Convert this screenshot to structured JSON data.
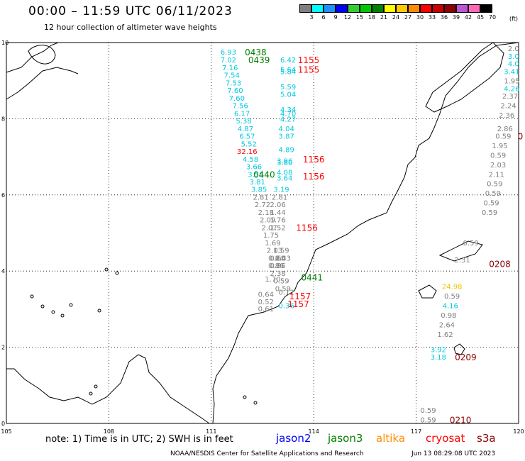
{
  "header": {
    "title": "00:00 – 11:59 UTC 06/11/2023",
    "subtitle": "12 hour collection of altimeter wave heights"
  },
  "legend": {
    "unit": "(ft)",
    "colors": [
      "#7f7f7f",
      "#00ffff",
      "#1e90ff",
      "#0000ff",
      "#32cd32",
      "#00c800",
      "#007f00",
      "#ffff00",
      "#ffc800",
      "#ff8c00",
      "#ff0000",
      "#c80000",
      "#8b0000",
      "#ba55d3",
      "#ff69b4",
      "#000000"
    ],
    "labels": [
      "3",
      "6",
      "9",
      "12",
      "15",
      "18",
      "21",
      "24",
      "27",
      "30",
      "33",
      "36",
      "39",
      "42",
      "45",
      "70"
    ]
  },
  "axes": {
    "x_ticks": [
      "105",
      "108",
      "111",
      "114",
      "117",
      "120"
    ],
    "y_ticks": [
      "0",
      "2",
      "4",
      "6",
      "8",
      "10"
    ]
  },
  "colors": {
    "jason2": "#0000ff",
    "jason3": "#007f00",
    "altika": "#ff8c00",
    "cryosat": "#ff0000",
    "s3a": "#8b0000",
    "cyan": "#00c8e0",
    "gray": "#7f7f7f",
    "yellow": "#e6c800"
  },
  "chart_data": {
    "type": "scatter",
    "title": "00:00 – 11:59 UTC 06/11/2023",
    "xlabel": "",
    "ylabel": "",
    "xlim": [
      105,
      120
    ],
    "ylim": [
      0,
      10
    ],
    "wave_labels": [
      {
        "x": 111.5,
        "y": 9.76,
        "t": "6.93",
        "c": "cyan"
      },
      {
        "x": 111.5,
        "y": 9.55,
        "t": "7.02",
        "c": "cyan"
      },
      {
        "x": 111.55,
        "y": 9.35,
        "t": "7.16",
        "c": "cyan"
      },
      {
        "x": 111.6,
        "y": 9.15,
        "t": "7.54",
        "c": "cyan"
      },
      {
        "x": 111.65,
        "y": 8.95,
        "t": "7.53",
        "c": "cyan"
      },
      {
        "x": 111.7,
        "y": 8.75,
        "t": "7.60",
        "c": "cyan"
      },
      {
        "x": 111.75,
        "y": 8.55,
        "t": "7.60",
        "c": "cyan"
      },
      {
        "x": 111.85,
        "y": 8.35,
        "t": "7.56",
        "c": "cyan"
      },
      {
        "x": 111.9,
        "y": 8.15,
        "t": "6.17",
        "c": "cyan"
      },
      {
        "x": 111.95,
        "y": 7.95,
        "t": "5.38",
        "c": "cyan"
      },
      {
        "x": 112.0,
        "y": 7.75,
        "t": "4.87",
        "c": "cyan"
      },
      {
        "x": 112.05,
        "y": 7.55,
        "t": "6.57",
        "c": "cyan"
      },
      {
        "x": 112.1,
        "y": 7.35,
        "t": "5.52",
        "c": "cyan"
      },
      {
        "x": 112.05,
        "y": 7.15,
        "t": "32.16",
        "c": "cryosat"
      },
      {
        "x": 112.15,
        "y": 6.95,
        "t": "4.58",
        "c": "cyan"
      },
      {
        "x": 112.25,
        "y": 6.75,
        "t": "3.66",
        "c": "cyan"
      },
      {
        "x": 112.3,
        "y": 6.55,
        "t": "3.55",
        "c": "cyan"
      },
      {
        "x": 112.35,
        "y": 6.35,
        "t": "3.81",
        "c": "cyan"
      },
      {
        "x": 112.4,
        "y": 6.15,
        "t": "3.85",
        "c": "cyan"
      },
      {
        "x": 112.45,
        "y": 5.95,
        "t": "2.81",
        "c": "gray"
      },
      {
        "x": 112.5,
        "y": 5.75,
        "t": "2.72",
        "c": "gray"
      },
      {
        "x": 112.6,
        "y": 5.55,
        "t": "2.18",
        "c": "gray"
      },
      {
        "x": 112.65,
        "y": 5.35,
        "t": "2.09",
        "c": "gray"
      },
      {
        "x": 112.7,
        "y": 5.15,
        "t": "2.07",
        "c": "gray"
      },
      {
        "x": 112.75,
        "y": 4.95,
        "t": "1.75",
        "c": "gray"
      },
      {
        "x": 112.8,
        "y": 4.75,
        "t": "1.69",
        "c": "gray"
      },
      {
        "x": 112.85,
        "y": 4.55,
        "t": "2.13",
        "c": "gray"
      },
      {
        "x": 112.9,
        "y": 4.35,
        "t": "0.64",
        "c": "gray"
      },
      {
        "x": 112.9,
        "y": 4.15,
        "t": "0.86",
        "c": "gray"
      },
      {
        "x": 112.8,
        "y": 3.8,
        "t": "1.70",
        "c": "gray"
      },
      {
        "x": 112.6,
        "y": 3.4,
        "t": "0.64",
        "c": "gray"
      },
      {
        "x": 112.6,
        "y": 3.2,
        "t": "0.52",
        "c": "gray"
      },
      {
        "x": 112.6,
        "y": 3.02,
        "t": "0.61",
        "c": "gray"
      },
      {
        "x": 113.25,
        "y": 9.55,
        "t": "6.42",
        "c": "cyan"
      },
      {
        "x": 113.25,
        "y": 9.3,
        "t": "5.64",
        "c": "cyan"
      },
      {
        "x": 113.25,
        "y": 9.25,
        "t": "5.84",
        "c": "cyan"
      },
      {
        "x": 113.25,
        "y": 8.85,
        "t": "5.59",
        "c": "cyan"
      },
      {
        "x": 113.25,
        "y": 8.65,
        "t": "5.04",
        "c": "cyan"
      },
      {
        "x": 113.25,
        "y": 8.25,
        "t": "4.34",
        "c": "cyan"
      },
      {
        "x": 113.25,
        "y": 8.15,
        "t": "4.70",
        "c": "cyan"
      },
      {
        "x": 113.25,
        "y": 8.0,
        "t": "4.27",
        "c": "cyan"
      },
      {
        "x": 113.2,
        "y": 7.75,
        "t": "4.04",
        "c": "cyan"
      },
      {
        "x": 113.2,
        "y": 7.55,
        "t": "3.87",
        "c": "cyan"
      },
      {
        "x": 113.2,
        "y": 7.2,
        "t": "4.89",
        "c": "cyan"
      },
      {
        "x": 113.15,
        "y": 6.9,
        "t": "3.96",
        "c": "cyan"
      },
      {
        "x": 113.15,
        "y": 6.85,
        "t": "3.80",
        "c": "cyan"
      },
      {
        "x": 113.15,
        "y": 6.6,
        "t": "4.08",
        "c": "cyan"
      },
      {
        "x": 113.15,
        "y": 6.45,
        "t": "3.64",
        "c": "cyan"
      },
      {
        "x": 113.05,
        "y": 6.15,
        "t": "3.19",
        "c": "cyan"
      },
      {
        "x": 113.0,
        "y": 5.95,
        "t": "2.81",
        "c": "gray"
      },
      {
        "x": 112.95,
        "y": 5.75,
        "t": "2.06",
        "c": "gray"
      },
      {
        "x": 112.95,
        "y": 5.55,
        "t": "1.44",
        "c": "gray"
      },
      {
        "x": 112.95,
        "y": 5.35,
        "t": "1.76",
        "c": "gray"
      },
      {
        "x": 112.95,
        "y": 5.15,
        "t": "1.52",
        "c": "gray"
      },
      {
        "x": 112.95,
        "y": 4.35,
        "t": "0.64",
        "c": "gray"
      },
      {
        "x": 112.95,
        "y": 4.15,
        "t": "0.86",
        "c": "gray"
      },
      {
        "x": 112.95,
        "y": 3.95,
        "t": "2.38",
        "c": "gray"
      },
      {
        "x": 113.05,
        "y": 3.75,
        "t": "0.59",
        "c": "gray"
      },
      {
        "x": 113.1,
        "y": 3.55,
        "t": "0.59",
        "c": "gray"
      },
      {
        "x": 113.2,
        "y": 3.45,
        "t": "0.12",
        "c": "gray"
      },
      {
        "x": 113.2,
        "y": 3.1,
        "t": "0.36",
        "c": "cyan"
      },
      {
        "x": 113.1,
        "y": 4.35,
        "t": "2.33",
        "c": "gray"
      },
      {
        "x": 113.05,
        "y": 4.55,
        "t": "0.59",
        "c": "gray"
      },
      {
        "x": 119.85,
        "y": 9.85,
        "t": "2.0",
        "c": "gray"
      },
      {
        "x": 119.85,
        "y": 9.65,
        "t": "3.0",
        "c": "cyan"
      },
      {
        "x": 119.85,
        "y": 9.45,
        "t": "4.0",
        "c": "cyan"
      },
      {
        "x": 119.8,
        "y": 9.25,
        "t": "3.41",
        "c": "cyan"
      },
      {
        "x": 119.8,
        "y": 9.0,
        "t": "1.95",
        "c": "gray"
      },
      {
        "x": 119.8,
        "y": 8.8,
        "t": "4.26",
        "c": "cyan"
      },
      {
        "x": 119.75,
        "y": 8.6,
        "t": "2.37",
        "c": "gray"
      },
      {
        "x": 119.7,
        "y": 8.35,
        "t": "2.24",
        "c": "gray"
      },
      {
        "x": 119.65,
        "y": 8.1,
        "t": "2.36",
        "c": "gray"
      },
      {
        "x": 119.6,
        "y": 7.75,
        "t": "2.86",
        "c": "gray"
      },
      {
        "x": 119.55,
        "y": 7.55,
        "t": "0.59",
        "c": "gray"
      },
      {
        "x": 119.45,
        "y": 7.3,
        "t": "1.95",
        "c": "gray"
      },
      {
        "x": 119.4,
        "y": 7.05,
        "t": "0.59",
        "c": "gray"
      },
      {
        "x": 119.4,
        "y": 6.8,
        "t": "2.03",
        "c": "gray"
      },
      {
        "x": 119.35,
        "y": 6.55,
        "t": "2.11",
        "c": "gray"
      },
      {
        "x": 119.3,
        "y": 6.3,
        "t": "0.59",
        "c": "gray"
      },
      {
        "x": 119.25,
        "y": 6.05,
        "t": "0.59",
        "c": "gray"
      },
      {
        "x": 119.2,
        "y": 5.8,
        "t": "0.59",
        "c": "gray"
      },
      {
        "x": 119.15,
        "y": 5.55,
        "t": "0.59",
        "c": "gray"
      },
      {
        "x": 118.6,
        "y": 4.75,
        "t": "0.59",
        "c": "gray"
      },
      {
        "x": 118.35,
        "y": 4.3,
        "t": "2.31",
        "c": "gray"
      },
      {
        "x": 118.05,
        "y": 3.6,
        "t": "24.98",
        "c": "yellow"
      },
      {
        "x": 118.05,
        "y": 3.35,
        "t": "0.59",
        "c": "gray"
      },
      {
        "x": 118.0,
        "y": 3.1,
        "t": "4.16",
        "c": "cyan"
      },
      {
        "x": 117.95,
        "y": 2.85,
        "t": "0.98",
        "c": "gray"
      },
      {
        "x": 117.9,
        "y": 2.6,
        "t": "2.64",
        "c": "gray"
      },
      {
        "x": 117.85,
        "y": 2.35,
        "t": "1.62",
        "c": "gray"
      },
      {
        "x": 117.65,
        "y": 1.95,
        "t": "3.92",
        "c": "cyan"
      },
      {
        "x": 117.65,
        "y": 1.75,
        "t": "3.18",
        "c": "cyan"
      },
      {
        "x": 117.35,
        "y": 0.35,
        "t": "0.59",
        "c": "gray"
      },
      {
        "x": 117.35,
        "y": 0.1,
        "t": "0.59",
        "c": "gray"
      }
    ],
    "time_labels": [
      {
        "x": 112.3,
        "y": 9.76,
        "t": "0438",
        "c": "jason3"
      },
      {
        "x": 112.4,
        "y": 9.55,
        "t": "0439",
        "c": "jason3"
      },
      {
        "x": 112.55,
        "y": 6.55,
        "t": "0440",
        "c": "jason3"
      },
      {
        "x": 113.95,
        "y": 3.85,
        "t": "0441",
        "c": "jason3"
      },
      {
        "x": 113.85,
        "y": 9.55,
        "t": "1155",
        "c": "cryosat"
      },
      {
        "x": 113.85,
        "y": 9.3,
        "t": "1155",
        "c": "cryosat"
      },
      {
        "x": 114.0,
        "y": 6.95,
        "t": "1156",
        "c": "cryosat"
      },
      {
        "x": 114.0,
        "y": 6.5,
        "t": "1156",
        "c": "cryosat"
      },
      {
        "x": 113.8,
        "y": 5.15,
        "t": "1156",
        "c": "cryosat"
      },
      {
        "x": 113.6,
        "y": 3.35,
        "t": "1157",
        "c": "cryosat"
      },
      {
        "x": 113.55,
        "y": 3.15,
        "t": "1157",
        "c": "cryosat"
      },
      {
        "x": 119.45,
        "y": 4.2,
        "t": "0208",
        "c": "s3a"
      },
      {
        "x": 118.45,
        "y": 1.75,
        "t": "0209",
        "c": "s3a"
      },
      {
        "x": 118.3,
        "y": 0.1,
        "t": "0210",
        "c": "s3a"
      },
      {
        "x": 120.05,
        "y": 7.55,
        "t": "0",
        "c": "s3a"
      }
    ]
  },
  "footer": {
    "note": "note:  1) Time is in UTC; 2) SWH is in feet",
    "sat_jason2": "jason2",
    "sat_jason3": "jason3",
    "sat_altika": "altika",
    "sat_cryosat": "cryosat",
    "sat_s3a": "s3a",
    "credit": "NOAA/NESDIS Center for Satellite Applications and Research",
    "date": "Jun 13 08:29:08 UTC 2023"
  }
}
